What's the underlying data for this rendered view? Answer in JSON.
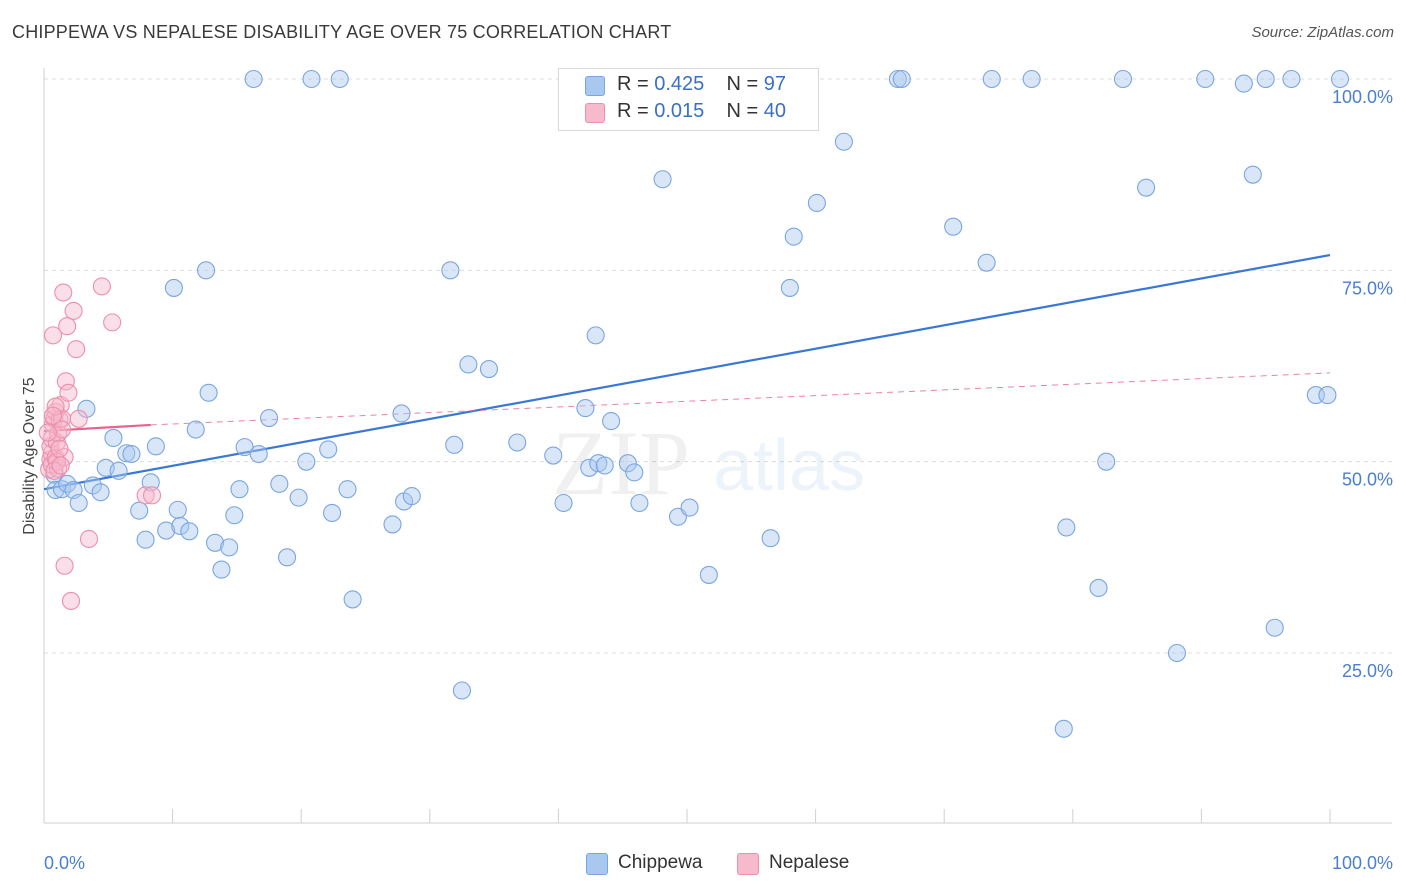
{
  "title": "CHIPPEWA VS NEPALESE DISABILITY AGE OVER 75 CORRELATION CHART",
  "source": "Source: ZipAtlas.com",
  "watermark": {
    "zip": "ZIP",
    "atlas": "atlas"
  },
  "legend": {
    "r_label": "R =",
    "n_label": "N =",
    "rows": [
      {
        "name": "Chippewa",
        "r": "0.425",
        "n": "97",
        "color": "#a8c8f0",
        "border": "#7aa6e0"
      },
      {
        "name": "Nepalese",
        "r": "0.015",
        "n": "40",
        "color": "#f7b9cc",
        "border": "#ec8fab"
      }
    ]
  },
  "bottom_legend": [
    {
      "label": "Chippewa",
      "color": "#a8c8f0",
      "border": "#7aa6e0"
    },
    {
      "label": "Nepalese",
      "color": "#f7b9cc",
      "border": "#ec8fab"
    }
  ],
  "chart_data": {
    "type": "scatter",
    "title": "CHIPPEWA VS NEPALESE DISABILITY AGE OVER 75 CORRELATION CHART",
    "xlabel": "",
    "ylabel": "Disability Age Over 75",
    "xlim": [
      0,
      100
    ],
    "ylim": [
      5,
      102
    ],
    "x_tick_labels": [
      "0.0%",
      "100.0%"
    ],
    "y_ticks": [
      {
        "value": 25,
        "label": "25.0%"
      },
      {
        "value": 50,
        "label": "50.0%"
      },
      {
        "value": 75,
        "label": "75.0%"
      },
      {
        "value": 100,
        "label": "100.0%"
      }
    ],
    "grid": true,
    "series": [
      {
        "name": "Chippewa",
        "color": "#a8c8f0",
        "edge": "#7aa6e0",
        "trend": {
          "x": [
            0,
            100
          ],
          "y": [
            46.4,
            77.0
          ],
          "color": "#3a78d4"
        },
        "points": [
          [
            0.8,
            48.3
          ],
          [
            0.9,
            46.3
          ],
          [
            1.4,
            46.4
          ],
          [
            1.8,
            47.1
          ],
          [
            2.3,
            46.3
          ],
          [
            2.7,
            44.6
          ],
          [
            3.3,
            56.9
          ],
          [
            3.8,
            46.9
          ],
          [
            4.4,
            46.0
          ],
          [
            4.8,
            49.2
          ],
          [
            5.4,
            53.1
          ],
          [
            5.8,
            48.8
          ],
          [
            6.4,
            51.1
          ],
          [
            6.8,
            51.0
          ],
          [
            7.4,
            43.6
          ],
          [
            7.9,
            39.8
          ],
          [
            8.3,
            47.3
          ],
          [
            8.7,
            52.0
          ],
          [
            9.5,
            41.0
          ],
          [
            10.1,
            72.7
          ],
          [
            10.4,
            43.7
          ],
          [
            10.6,
            41.6
          ],
          [
            11.3,
            40.9
          ],
          [
            11.8,
            54.2
          ],
          [
            12.6,
            75.0
          ],
          [
            12.8,
            59.0
          ],
          [
            13.3,
            39.4
          ],
          [
            13.8,
            35.9
          ],
          [
            14.4,
            38.8
          ],
          [
            14.8,
            43.0
          ],
          [
            15.2,
            46.4
          ],
          [
            16.3,
            100.0
          ],
          [
            15.6,
            51.9
          ],
          [
            16.7,
            51.0
          ],
          [
            17.5,
            55.7
          ],
          [
            18.3,
            47.1
          ],
          [
            18.9,
            37.5
          ],
          [
            19.8,
            45.3
          ],
          [
            20.8,
            100.0
          ],
          [
            20.4,
            50.0
          ],
          [
            22.4,
            43.3
          ],
          [
            22.1,
            51.6
          ],
          [
            23.0,
            100.0
          ],
          [
            23.6,
            46.4
          ],
          [
            24.0,
            32.0
          ],
          [
            27.1,
            41.8
          ],
          [
            27.8,
            56.3
          ],
          [
            28.0,
            44.8
          ],
          [
            28.6,
            45.5
          ],
          [
            31.6,
            75.0
          ],
          [
            31.9,
            52.2
          ],
          [
            32.5,
            20.1
          ],
          [
            33.0,
            62.7
          ],
          [
            34.6,
            62.1
          ],
          [
            36.8,
            52.5
          ],
          [
            39.6,
            50.8
          ],
          [
            40.4,
            44.6
          ],
          [
            42.1,
            57.0
          ],
          [
            42.4,
            49.2
          ],
          [
            42.9,
            66.5
          ],
          [
            43.1,
            49.8
          ],
          [
            43.6,
            49.5
          ],
          [
            44.1,
            55.3
          ],
          [
            45.4,
            49.8
          ],
          [
            45.9,
            48.6
          ],
          [
            46.3,
            44.6
          ],
          [
            48.1,
            86.9
          ],
          [
            49.3,
            42.8
          ],
          [
            50.2,
            44.0
          ],
          [
            51.7,
            35.2
          ],
          [
            56.5,
            40.0
          ],
          [
            58.3,
            79.4
          ],
          [
            60.1,
            83.8
          ],
          [
            62.2,
            91.8
          ],
          [
            66.4,
            100.0
          ],
          [
            66.7,
            100.0
          ],
          [
            70.7,
            80.7
          ],
          [
            73.7,
            100.0
          ],
          [
            73.3,
            76.0
          ],
          [
            76.8,
            100.0
          ],
          [
            79.3,
            15.1
          ],
          [
            79.5,
            41.4
          ],
          [
            82.0,
            33.5
          ],
          [
            82.6,
            50.0
          ],
          [
            83.9,
            100.0
          ],
          [
            85.7,
            85.8
          ],
          [
            88.1,
            25.0
          ],
          [
            90.3,
            100.0
          ],
          [
            93.3,
            99.4
          ],
          [
            94.0,
            87.5
          ],
          [
            95.0,
            100.0
          ],
          [
            95.7,
            28.3
          ],
          [
            97.0,
            100.0
          ],
          [
            98.9,
            58.7
          ],
          [
            99.8,
            58.7
          ],
          [
            101.6,
            100.0
          ],
          [
            58.0,
            72.7
          ]
        ]
      },
      {
        "name": "Nepalese",
        "color": "#f7b9cc",
        "edge": "#ec8fab",
        "trend": {
          "x": [
            0,
            8.3
          ],
          "y": [
            54.0,
            54.8
          ],
          "color": "#e8628e",
          "dash_to": [
            100,
            61.6
          ]
        },
        "points": [
          [
            0.4,
            49.0
          ],
          [
            0.5,
            50.3
          ],
          [
            0.6,
            51.1
          ],
          [
            0.5,
            52.0
          ],
          [
            0.6,
            53.0
          ],
          [
            0.7,
            54.9
          ],
          [
            0.8,
            55.6
          ],
          [
            0.9,
            56.5
          ],
          [
            0.6,
            49.6
          ],
          [
            0.7,
            66.5
          ],
          [
            0.9,
            50.5
          ],
          [
            1.0,
            52.5
          ],
          [
            1.1,
            53.7
          ],
          [
            1.2,
            55.5
          ],
          [
            1.3,
            57.4
          ],
          [
            1.1,
            49.1
          ],
          [
            1.4,
            55.6
          ],
          [
            1.5,
            72.1
          ],
          [
            1.6,
            36.4
          ],
          [
            1.8,
            67.7
          ],
          [
            1.7,
            60.5
          ],
          [
            1.9,
            59.0
          ],
          [
            1.6,
            50.6
          ],
          [
            2.1,
            31.8
          ],
          [
            2.3,
            69.7
          ],
          [
            2.5,
            64.7
          ],
          [
            2.7,
            55.6
          ],
          [
            1.4,
            54.2
          ],
          [
            1.0,
            50.0
          ],
          [
            0.8,
            48.8
          ],
          [
            3.5,
            39.9
          ],
          [
            4.5,
            72.9
          ],
          [
            5.3,
            68.2
          ],
          [
            7.9,
            45.6
          ],
          [
            8.4,
            45.6
          ],
          [
            0.3,
            53.8
          ],
          [
            0.9,
            57.2
          ],
          [
            1.2,
            51.7
          ],
          [
            0.7,
            56.0
          ],
          [
            1.3,
            49.5
          ]
        ]
      }
    ]
  }
}
